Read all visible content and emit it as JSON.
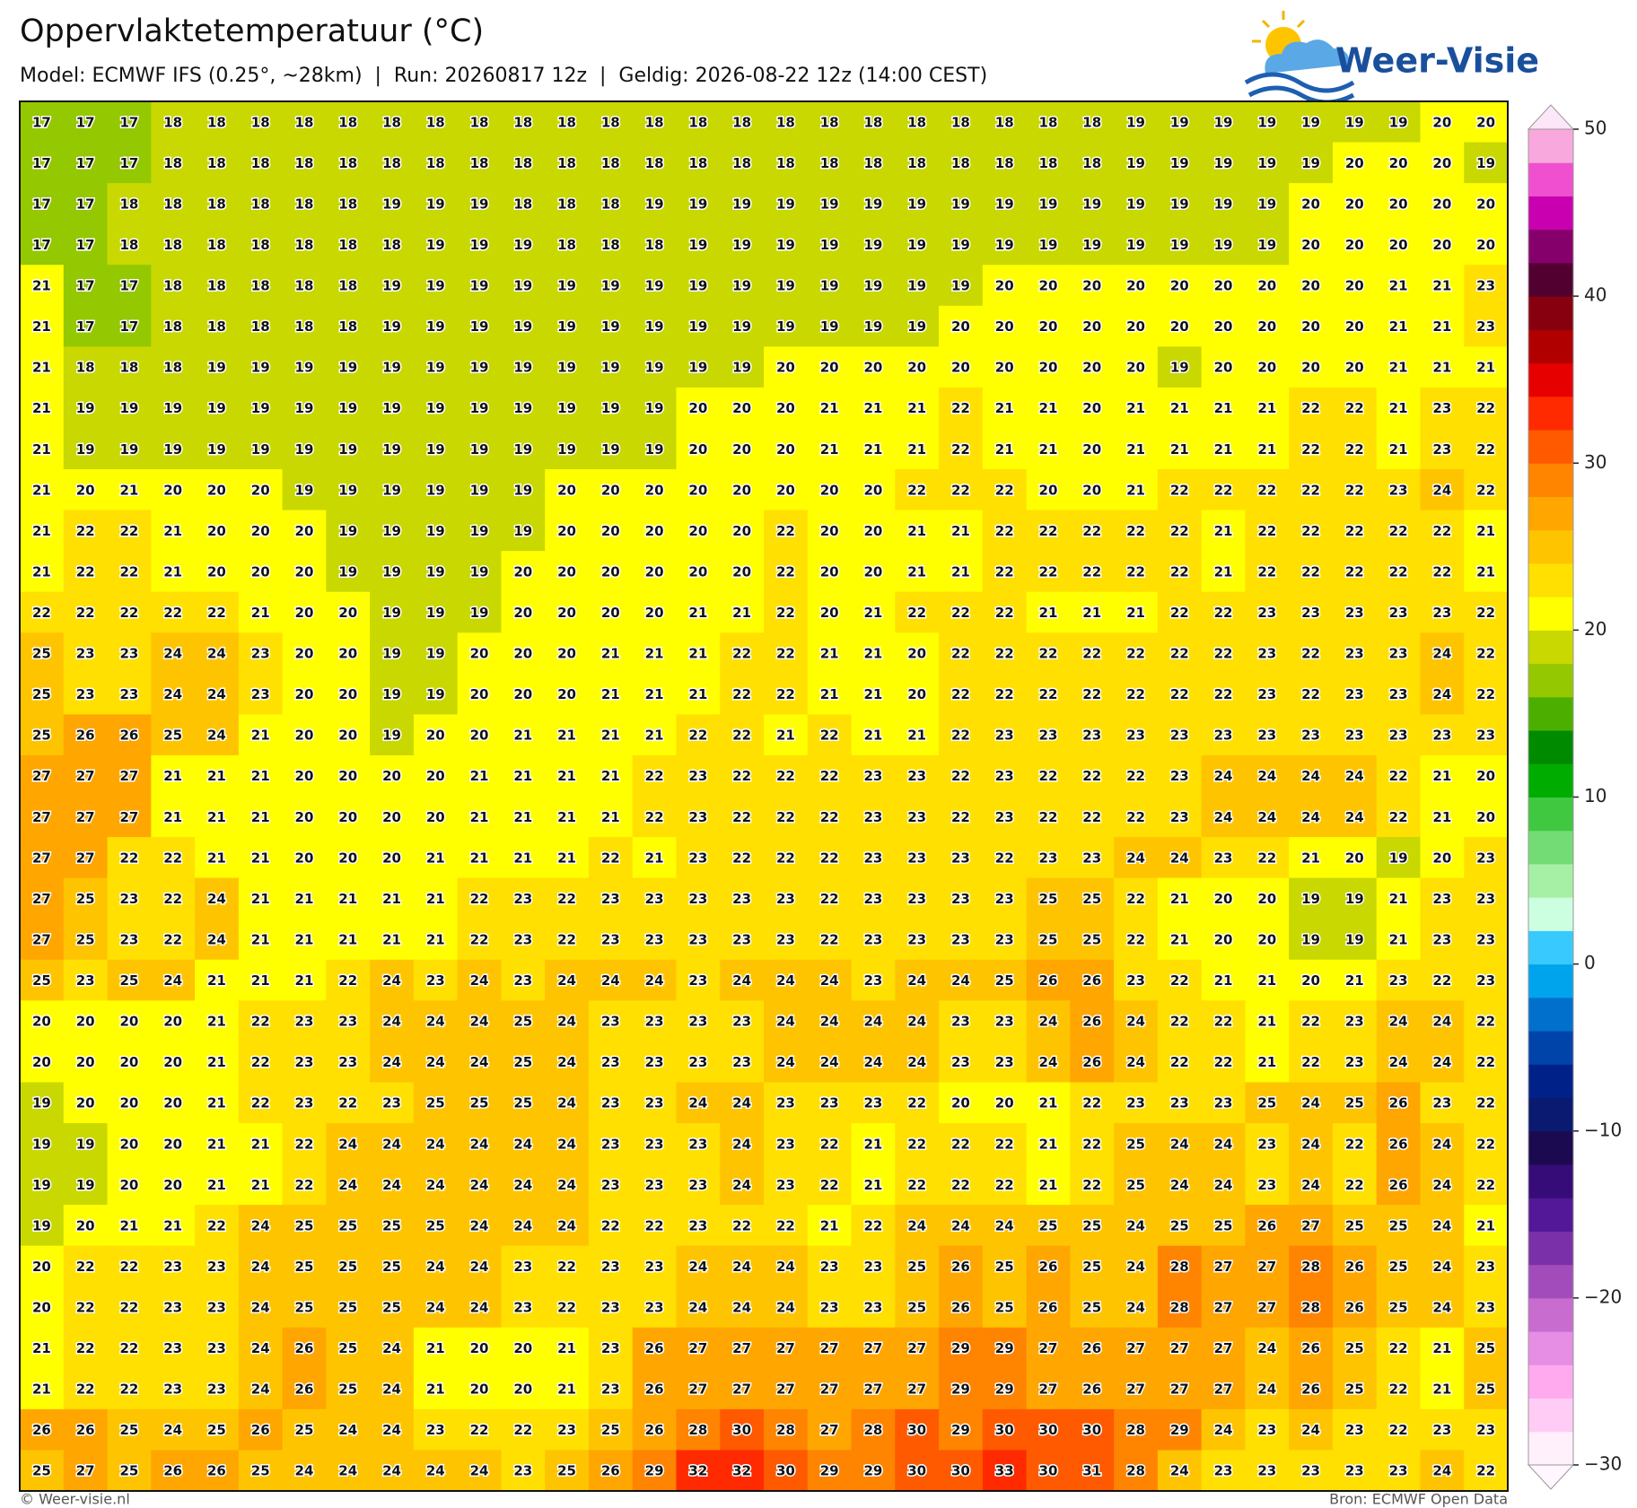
{
  "header": {
    "title": "Oppervlaktetemperatuur (°C)",
    "subtitle": "Model: ECMWF IFS (0.25°, ~28km)  |  Run: 20260817 12z  |  Geldig: 2026-08-22 12z (14:00 CEST)",
    "logo": "Weer-Visie"
  },
  "map": {
    "values": [
      [
        17,
        17,
        17,
        18,
        18,
        18,
        18,
        18,
        18,
        18,
        18,
        18,
        18,
        18,
        18,
        18,
        18,
        18,
        18,
        18,
        18,
        18,
        18,
        18,
        18,
        19,
        19,
        19,
        19,
        19,
        19,
        19,
        20,
        20
      ],
      [
        17,
        17,
        17,
        18,
        18,
        18,
        18,
        18,
        18,
        18,
        18,
        18,
        18,
        18,
        18,
        18,
        18,
        18,
        18,
        18,
        18,
        18,
        18,
        18,
        18,
        19,
        19,
        19,
        19,
        19,
        20,
        20,
        20,
        19
      ],
      [
        17,
        17,
        18,
        18,
        18,
        18,
        18,
        18,
        19,
        19,
        19,
        18,
        18,
        18,
        19,
        19,
        19,
        19,
        19,
        19,
        19,
        19,
        19,
        19,
        19,
        19,
        19,
        19,
        19,
        20,
        20,
        20,
        20,
        20
      ],
      [
        17,
        17,
        18,
        18,
        18,
        18,
        18,
        18,
        18,
        19,
        19,
        19,
        18,
        18,
        18,
        19,
        19,
        19,
        19,
        19,
        19,
        19,
        19,
        19,
        19,
        19,
        19,
        19,
        19,
        20,
        20,
        20,
        20,
        20
      ],
      [
        21,
        17,
        17,
        18,
        18,
        18,
        18,
        18,
        19,
        19,
        19,
        19,
        19,
        19,
        19,
        19,
        19,
        19,
        19,
        19,
        19,
        19,
        20,
        20,
        20,
        20,
        20,
        20,
        20,
        20,
        20,
        21,
        21,
        23
      ],
      [
        21,
        17,
        17,
        18,
        18,
        18,
        18,
        18,
        19,
        19,
        19,
        19,
        19,
        19,
        19,
        19,
        19,
        19,
        19,
        19,
        19,
        20,
        20,
        20,
        20,
        20,
        20,
        20,
        20,
        20,
        20,
        21,
        21,
        23
      ],
      [
        21,
        18,
        18,
        18,
        19,
        19,
        19,
        19,
        19,
        19,
        19,
        19,
        19,
        19,
        19,
        19,
        19,
        20,
        20,
        20,
        20,
        20,
        20,
        20,
        20,
        20,
        19,
        20,
        20,
        20,
        20,
        21,
        21,
        21
      ],
      [
        21,
        19,
        19,
        19,
        19,
        19,
        19,
        19,
        19,
        19,
        19,
        19,
        19,
        19,
        19,
        20,
        20,
        20,
        21,
        21,
        21,
        22,
        21,
        21,
        20,
        21,
        21,
        21,
        21,
        22,
        22,
        21,
        23,
        22
      ],
      [
        21,
        19,
        19,
        19,
        19,
        19,
        19,
        19,
        19,
        19,
        19,
        19,
        19,
        19,
        19,
        20,
        20,
        20,
        21,
        21,
        21,
        22,
        21,
        21,
        20,
        21,
        21,
        21,
        21,
        22,
        22,
        21,
        23,
        22
      ],
      [
        21,
        20,
        21,
        20,
        20,
        20,
        19,
        19,
        19,
        19,
        19,
        19,
        20,
        20,
        20,
        20,
        20,
        20,
        20,
        20,
        22,
        22,
        22,
        20,
        20,
        21,
        22,
        22,
        22,
        22,
        22,
        23,
        24,
        22
      ],
      [
        21,
        22,
        22,
        21,
        20,
        20,
        20,
        19,
        19,
        19,
        19,
        19,
        20,
        20,
        20,
        20,
        20,
        22,
        20,
        20,
        21,
        21,
        22,
        22,
        22,
        22,
        22,
        21,
        22,
        22,
        22,
        22,
        22,
        21
      ],
      [
        21,
        22,
        22,
        21,
        20,
        20,
        20,
        19,
        19,
        19,
        19,
        20,
        20,
        20,
        20,
        20,
        20,
        22,
        20,
        20,
        21,
        21,
        22,
        22,
        22,
        22,
        22,
        21,
        22,
        22,
        22,
        22,
        22,
        21
      ],
      [
        22,
        22,
        22,
        22,
        22,
        21,
        20,
        20,
        19,
        19,
        19,
        20,
        20,
        20,
        20,
        21,
        21,
        22,
        20,
        21,
        22,
        22,
        22,
        21,
        21,
        21,
        22,
        22,
        23,
        23,
        23,
        23,
        23,
        22
      ],
      [
        25,
        23,
        23,
        24,
        24,
        23,
        20,
        20,
        19,
        19,
        20,
        20,
        20,
        21,
        21,
        21,
        22,
        22,
        21,
        21,
        20,
        22,
        22,
        22,
        22,
        22,
        22,
        22,
        23,
        22,
        23,
        23,
        24,
        22
      ],
      [
        25,
        23,
        23,
        24,
        24,
        23,
        20,
        20,
        19,
        19,
        20,
        20,
        20,
        21,
        21,
        21,
        22,
        22,
        21,
        21,
        20,
        22,
        22,
        22,
        22,
        22,
        22,
        22,
        23,
        22,
        23,
        23,
        24,
        22
      ],
      [
        25,
        26,
        26,
        25,
        24,
        21,
        20,
        20,
        19,
        20,
        20,
        21,
        21,
        21,
        21,
        22,
        22,
        21,
        22,
        21,
        21,
        22,
        23,
        23,
        23,
        23,
        23,
        23,
        23,
        23,
        23,
        23,
        23,
        23
      ],
      [
        27,
        27,
        27,
        21,
        21,
        21,
        20,
        20,
        20,
        20,
        21,
        21,
        21,
        21,
        22,
        23,
        22,
        22,
        22,
        23,
        23,
        22,
        23,
        22,
        22,
        22,
        23,
        24,
        24,
        24,
        24,
        22,
        21,
        20
      ],
      [
        27,
        27,
        27,
        21,
        21,
        21,
        20,
        20,
        20,
        20,
        21,
        21,
        21,
        21,
        22,
        23,
        22,
        22,
        22,
        23,
        23,
        22,
        23,
        22,
        22,
        22,
        23,
        24,
        24,
        24,
        24,
        22,
        21,
        20
      ],
      [
        27,
        27,
        22,
        22,
        21,
        21,
        20,
        20,
        20,
        21,
        21,
        21,
        21,
        22,
        21,
        23,
        22,
        22,
        22,
        23,
        23,
        23,
        22,
        23,
        23,
        24,
        24,
        23,
        22,
        21,
        20,
        19,
        20,
        23
      ],
      [
        27,
        25,
        23,
        22,
        24,
        21,
        21,
        21,
        21,
        21,
        22,
        23,
        22,
        23,
        23,
        23,
        23,
        23,
        22,
        23,
        23,
        23,
        23,
        25,
        25,
        22,
        21,
        20,
        20,
        19,
        19,
        21,
        23,
        23
      ],
      [
        27,
        25,
        23,
        22,
        24,
        21,
        21,
        21,
        21,
        21,
        22,
        23,
        22,
        23,
        23,
        23,
        23,
        23,
        22,
        23,
        23,
        23,
        23,
        25,
        25,
        22,
        21,
        20,
        20,
        19,
        19,
        21,
        23,
        23
      ],
      [
        25,
        23,
        25,
        24,
        21,
        21,
        21,
        22,
        24,
        23,
        24,
        23,
        24,
        24,
        24,
        23,
        24,
        24,
        24,
        23,
        24,
        24,
        25,
        26,
        26,
        23,
        22,
        21,
        21,
        20,
        21,
        23,
        22,
        23
      ],
      [
        20,
        20,
        20,
        20,
        21,
        22,
        23,
        23,
        24,
        24,
        24,
        25,
        24,
        23,
        23,
        23,
        23,
        24,
        24,
        24,
        24,
        23,
        23,
        24,
        26,
        24,
        22,
        22,
        21,
        22,
        23,
        24,
        24,
        22
      ],
      [
        20,
        20,
        20,
        20,
        21,
        22,
        23,
        23,
        24,
        24,
        24,
        25,
        24,
        23,
        23,
        23,
        23,
        24,
        24,
        24,
        24,
        23,
        23,
        24,
        26,
        24,
        22,
        22,
        21,
        22,
        23,
        24,
        24,
        22
      ],
      [
        19,
        20,
        20,
        20,
        21,
        22,
        23,
        22,
        23,
        25,
        25,
        25,
        24,
        23,
        23,
        24,
        24,
        23,
        23,
        23,
        22,
        20,
        20,
        21,
        22,
        23,
        23,
        23,
        25,
        24,
        25,
        26,
        23,
        22
      ],
      [
        19,
        19,
        20,
        20,
        21,
        21,
        22,
        24,
        24,
        24,
        24,
        24,
        24,
        23,
        23,
        23,
        24,
        23,
        22,
        21,
        22,
        22,
        22,
        21,
        22,
        25,
        24,
        24,
        23,
        24,
        22,
        26,
        24,
        22
      ],
      [
        19,
        19,
        20,
        20,
        21,
        21,
        22,
        24,
        24,
        24,
        24,
        24,
        24,
        23,
        23,
        23,
        24,
        23,
        22,
        21,
        22,
        22,
        22,
        21,
        22,
        25,
        24,
        24,
        23,
        24,
        22,
        26,
        24,
        22
      ],
      [
        19,
        20,
        21,
        21,
        22,
        24,
        25,
        25,
        25,
        25,
        24,
        24,
        24,
        22,
        22,
        23,
        22,
        22,
        21,
        22,
        24,
        24,
        24,
        25,
        25,
        24,
        25,
        25,
        26,
        27,
        25,
        25,
        24,
        21
      ],
      [
        20,
        22,
        22,
        23,
        23,
        24,
        25,
        25,
        25,
        24,
        24,
        23,
        22,
        23,
        23,
        24,
        24,
        24,
        23,
        23,
        25,
        26,
        25,
        26,
        25,
        24,
        28,
        27,
        27,
        28,
        26,
        25,
        24,
        23
      ],
      [
        20,
        22,
        22,
        23,
        23,
        24,
        25,
        25,
        25,
        24,
        24,
        23,
        22,
        23,
        23,
        24,
        24,
        24,
        23,
        23,
        25,
        26,
        25,
        26,
        25,
        24,
        28,
        27,
        27,
        28,
        26,
        25,
        24,
        23
      ],
      [
        21,
        22,
        22,
        23,
        23,
        24,
        26,
        25,
        24,
        21,
        20,
        20,
        21,
        23,
        26,
        27,
        27,
        27,
        27,
        27,
        27,
        29,
        29,
        27,
        26,
        27,
        27,
        27,
        24,
        26,
        25,
        22,
        21,
        25
      ],
      [
        21,
        22,
        22,
        23,
        23,
        24,
        26,
        25,
        24,
        21,
        20,
        20,
        21,
        23,
        26,
        27,
        27,
        27,
        27,
        27,
        27,
        29,
        29,
        27,
        26,
        27,
        27,
        27,
        24,
        26,
        25,
        22,
        21,
        25
      ],
      [
        26,
        26,
        25,
        24,
        25,
        26,
        25,
        24,
        24,
        23,
        22,
        22,
        23,
        25,
        26,
        28,
        30,
        28,
        27,
        28,
        30,
        29,
        30,
        30,
        30,
        28,
        29,
        24,
        23,
        24,
        23,
        22,
        23,
        23
      ],
      [
        25,
        27,
        25,
        26,
        26,
        25,
        24,
        24,
        24,
        24,
        24,
        23,
        25,
        26,
        29,
        32,
        32,
        30,
        29,
        29,
        30,
        30,
        33,
        30,
        31,
        28,
        24,
        23,
        23,
        23,
        23,
        23,
        24,
        22
      ]
    ]
  },
  "colorbar": {
    "clim": [
      -30,
      50
    ],
    "cticks": [
      {
        "value": -30,
        "label": "−30"
      },
      {
        "value": -20,
        "label": "−20"
      },
      {
        "value": -10,
        "label": "−10"
      },
      0,
      10,
      20,
      30,
      40,
      50
    ],
    "colors": [
      "#fff0fc",
      "#ffccf5",
      "#ffaaee",
      "#e58ee3",
      "#c86cd0",
      "#a24cbc",
      "#7a30a8",
      "#521898",
      "#360c78",
      "#1c0a50",
      "#0a1a70",
      "#002288",
      "#0044aa",
      "#0070cc",
      "#00a4ec",
      "#38caff",
      "#ccffe0",
      "#a6f0a6",
      "#74dc74",
      "#40c840",
      "#00ac00",
      "#008a00",
      "#4caf00",
      "#94c800",
      "#c8d800",
      "#ffff00",
      "#ffe000",
      "#ffc400",
      "#ffa600",
      "#ff8400",
      "#ff5a00",
      "#ff2a00",
      "#e60000",
      "#b00000",
      "#860010",
      "#520030",
      "#86006c",
      "#c800b0",
      "#f050d0",
      "#f8a8dc"
    ],
    "extend_low": "#fff6fe",
    "extend_high": "#fde6f8"
  },
  "footer": {
    "left": "© Weer-visie.nl",
    "right": "Bron: ECMWF Open Data"
  }
}
